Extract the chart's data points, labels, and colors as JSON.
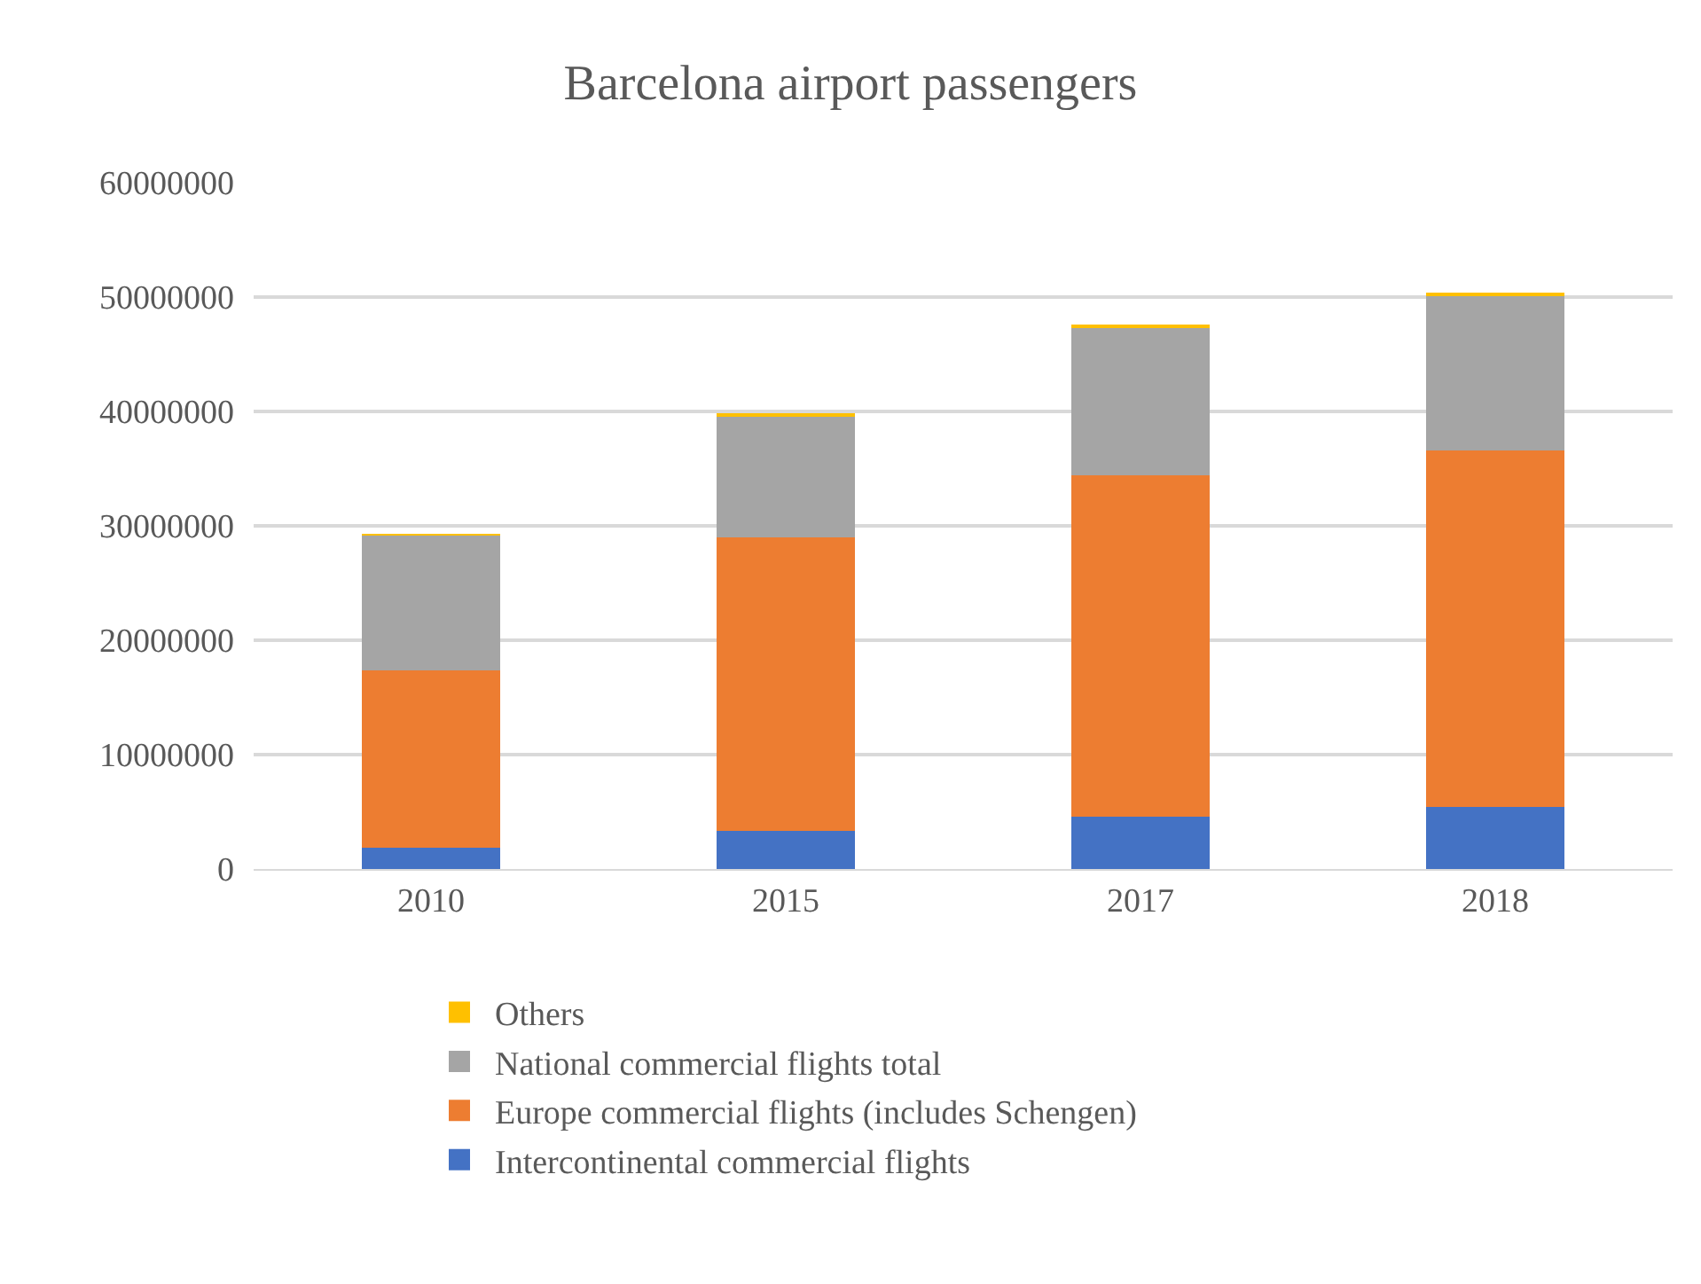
{
  "chart_data": {
    "type": "bar",
    "title": "Barcelona airport passengers",
    "categories": [
      "2010",
      "2015",
      "2017",
      "2018"
    ],
    "stacked": true,
    "series": [
      {
        "name": "Intercontinental commercial flights",
        "color": "#4472c4",
        "values": [
          1900000,
          3300000,
          4600000,
          5400000
        ]
      },
      {
        "name": "Europe commercial flights (includes Schengen)",
        "color": "#ed7d31",
        "values": [
          15500000,
          25700000,
          29800000,
          31200000
        ]
      },
      {
        "name": "National commercial flights total",
        "color": "#a5a5a5",
        "values": [
          11800000,
          10600000,
          12900000,
          13500000
        ]
      },
      {
        "name": "Others",
        "color": "#ffc000",
        "values": [
          100000,
          200000,
          200000,
          200000
        ]
      }
    ],
    "ylim": [
      0,
      60000000
    ],
    "yticks": [
      0,
      10000000,
      20000000,
      30000000,
      40000000,
      50000000,
      60000000
    ],
    "grid": "y",
    "legend": "bottom"
  }
}
